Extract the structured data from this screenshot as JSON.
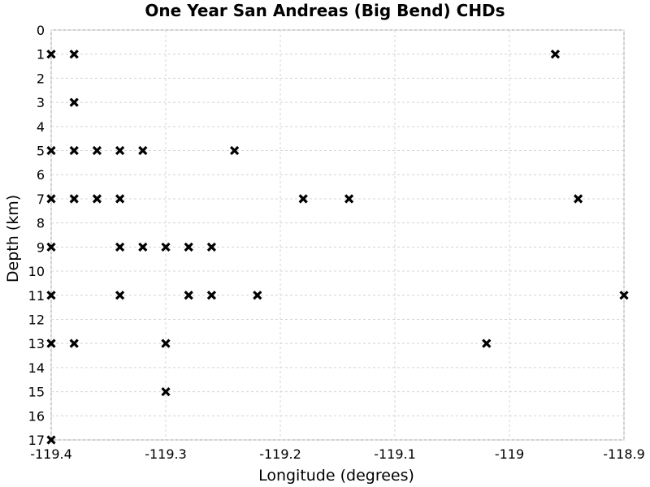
{
  "chart_data": {
    "type": "scatter",
    "title": "One Year San Andreas (Big Bend) CHDs",
    "xlabel": "Longitude (degrees)",
    "ylabel": "Depth (km)",
    "xlim": [
      -119.4,
      -118.9
    ],
    "ylim": [
      0,
      17
    ],
    "y_inverted": true,
    "grid": true,
    "marker": "x",
    "marker_color": "#000000",
    "x_ticks": [
      -119.4,
      -119.3,
      -119.2,
      -119.1,
      -119.0,
      -118.9
    ],
    "x_tick_labels": [
      "-119.4",
      "-119.3",
      "-119.2",
      "-119.1",
      "-119",
      "-118.9"
    ],
    "y_ticks": [
      0,
      1,
      2,
      3,
      4,
      5,
      6,
      7,
      8,
      9,
      10,
      11,
      12,
      13,
      14,
      15,
      16,
      17
    ],
    "y_tick_labels": [
      "0",
      "1",
      "2",
      "3",
      "4",
      "5",
      "6",
      "7",
      "8",
      "9",
      "10",
      "11",
      "12",
      "13",
      "14",
      "15",
      "16",
      "17"
    ],
    "points": [
      {
        "x": -119.4,
        "y": 1
      },
      {
        "x": -119.38,
        "y": 1
      },
      {
        "x": -118.96,
        "y": 1
      },
      {
        "x": -119.38,
        "y": 3
      },
      {
        "x": -119.4,
        "y": 5
      },
      {
        "x": -119.38,
        "y": 5
      },
      {
        "x": -119.36,
        "y": 5
      },
      {
        "x": -119.34,
        "y": 5
      },
      {
        "x": -119.32,
        "y": 5
      },
      {
        "x": -119.24,
        "y": 5
      },
      {
        "x": -119.4,
        "y": 7
      },
      {
        "x": -119.38,
        "y": 7
      },
      {
        "x": -119.36,
        "y": 7
      },
      {
        "x": -119.34,
        "y": 7
      },
      {
        "x": -119.18,
        "y": 7
      },
      {
        "x": -119.14,
        "y": 7
      },
      {
        "x": -118.94,
        "y": 7
      },
      {
        "x": -119.4,
        "y": 9
      },
      {
        "x": -119.34,
        "y": 9
      },
      {
        "x": -119.32,
        "y": 9
      },
      {
        "x": -119.3,
        "y": 9
      },
      {
        "x": -119.28,
        "y": 9
      },
      {
        "x": -119.26,
        "y": 9
      },
      {
        "x": -119.4,
        "y": 11
      },
      {
        "x": -119.34,
        "y": 11
      },
      {
        "x": -119.28,
        "y": 11
      },
      {
        "x": -119.26,
        "y": 11
      },
      {
        "x": -119.22,
        "y": 11
      },
      {
        "x": -118.9,
        "y": 11
      },
      {
        "x": -119.4,
        "y": 13
      },
      {
        "x": -119.38,
        "y": 13
      },
      {
        "x": -119.3,
        "y": 13
      },
      {
        "x": -119.02,
        "y": 13
      },
      {
        "x": -119.3,
        "y": 15
      },
      {
        "x": -119.4,
        "y": 17
      }
    ]
  }
}
